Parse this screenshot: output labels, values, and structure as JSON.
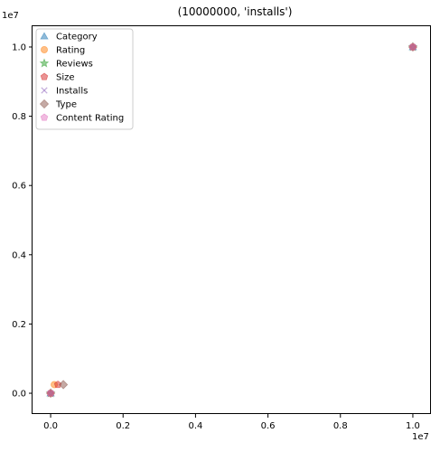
{
  "chart_data": {
    "type": "scatter",
    "title": "(10000000, 'installs')",
    "xlabel": "",
    "ylabel": "",
    "x_offset_label": "1e7",
    "y_offset_label": "1e7",
    "xlim": [
      -500000,
      10500000
    ],
    "ylim": [
      -600000,
      10600000
    ],
    "x_ticks": [
      0,
      2000000,
      4000000,
      6000000,
      8000000,
      10000000
    ],
    "x_tick_labels": [
      "0.0",
      "0.2",
      "0.4",
      "0.6",
      "0.8",
      "1.0"
    ],
    "y_ticks": [
      0,
      2000000,
      4000000,
      6000000,
      8000000,
      10000000
    ],
    "y_tick_labels": [
      "0.0",
      "0.2",
      "0.4",
      "0.6",
      "0.8",
      "1.0"
    ],
    "grid": false,
    "legend_position": "top-left",
    "series": [
      {
        "name": "Category",
        "marker": "triangle",
        "color": "#1f77b4",
        "points": [
          [
            0,
            0
          ],
          [
            10000000,
            10000000
          ]
        ]
      },
      {
        "name": "Rating",
        "marker": "circle",
        "color": "#ff7f0e",
        "points": [
          [
            0,
            0
          ],
          [
            100000,
            250000
          ],
          [
            10000000,
            10000000
          ]
        ]
      },
      {
        "name": "Reviews",
        "marker": "star",
        "color": "#2ca02c",
        "points": [
          [
            0,
            0
          ],
          [
            10000000,
            10000000
          ]
        ]
      },
      {
        "name": "Size",
        "marker": "pentagon",
        "color": "#d62728",
        "points": [
          [
            0,
            0
          ],
          [
            200000,
            250000
          ],
          [
            10000000,
            10000000
          ]
        ]
      },
      {
        "name": "Installs",
        "marker": "x",
        "color": "#9467bd",
        "points": [
          [
            0,
            0
          ],
          [
            10000000,
            10000000
          ]
        ]
      },
      {
        "name": "Type",
        "marker": "diamond",
        "color": "#8c564b",
        "points": [
          [
            0,
            0
          ],
          [
            350000,
            250000
          ],
          [
            10000000,
            10000000
          ]
        ]
      },
      {
        "name": "Content Rating",
        "marker": "pentagon",
        "color": "#e377c2",
        "points": [
          [
            0,
            0
          ],
          [
            10000000,
            10000000
          ]
        ]
      }
    ]
  }
}
